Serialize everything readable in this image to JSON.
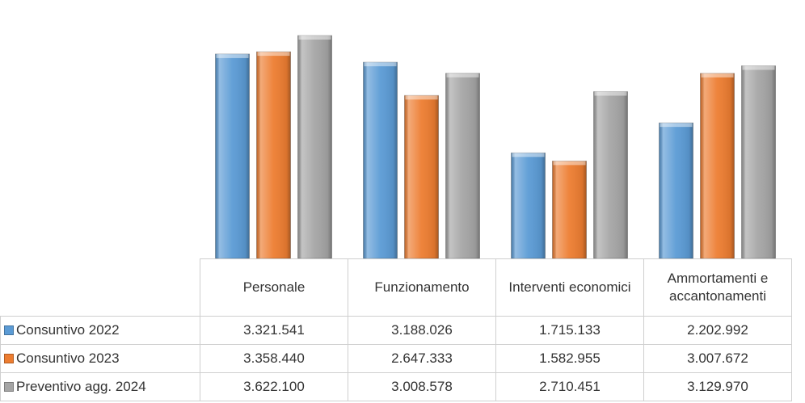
{
  "chart_data": {
    "type": "bar",
    "categories": [
      "Personale",
      "Funzionamento",
      "Interventi economici",
      "Ammortamenti e accantonamenti"
    ],
    "series": [
      {
        "name": "Consuntivo 2022",
        "color": "#5b9bd5",
        "values": [
          3321541,
          3188026,
          1715133,
          2202992
        ],
        "value_labels": [
          "3.321.541",
          "3.188.026",
          "1.715.133",
          "2.202.992"
        ]
      },
      {
        "name": "Consuntivo 2023",
        "color": "#ed7d31",
        "values": [
          3358440,
          2647333,
          1582955,
          3007672
        ],
        "value_labels": [
          "3.358.440",
          "2.647.333",
          "1.582.955",
          "3.007.672"
        ]
      },
      {
        "name": "Preventivo agg. 2024",
        "color": "#a5a5a5",
        "values": [
          3622100,
          3008578,
          2710451,
          3129970
        ],
        "value_labels": [
          "3.622.100",
          "3.008.578",
          "2.710.451",
          "3.129.970"
        ]
      }
    ]
  }
}
